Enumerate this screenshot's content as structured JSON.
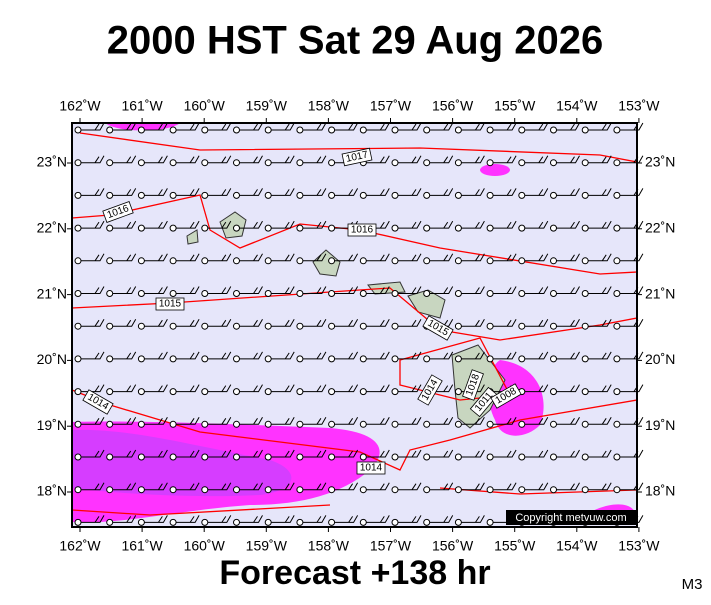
{
  "header": {
    "title": "2000 HST Sat 29 Aug 2026"
  },
  "map": {
    "lon_labels": [
      "162˚W",
      "161˚W",
      "160˚W",
      "159˚W",
      "158˚W",
      "157˚W",
      "156˚W",
      "155˚W",
      "154˚W",
      "153˚W"
    ],
    "lat_labels": [
      "23˚N",
      "22˚N",
      "21˚N",
      "20˚N",
      "19˚N",
      "18˚N"
    ],
    "isobar_labels": [
      "1017",
      "1016",
      "1016",
      "1015",
      "1015",
      "1014",
      "1014",
      "1014",
      "1018",
      "1011",
      "1008"
    ],
    "copyright": "Copyright metvuw.com"
  },
  "footer": {
    "forecast": "Forecast +138 hr",
    "model": "M3"
  }
}
